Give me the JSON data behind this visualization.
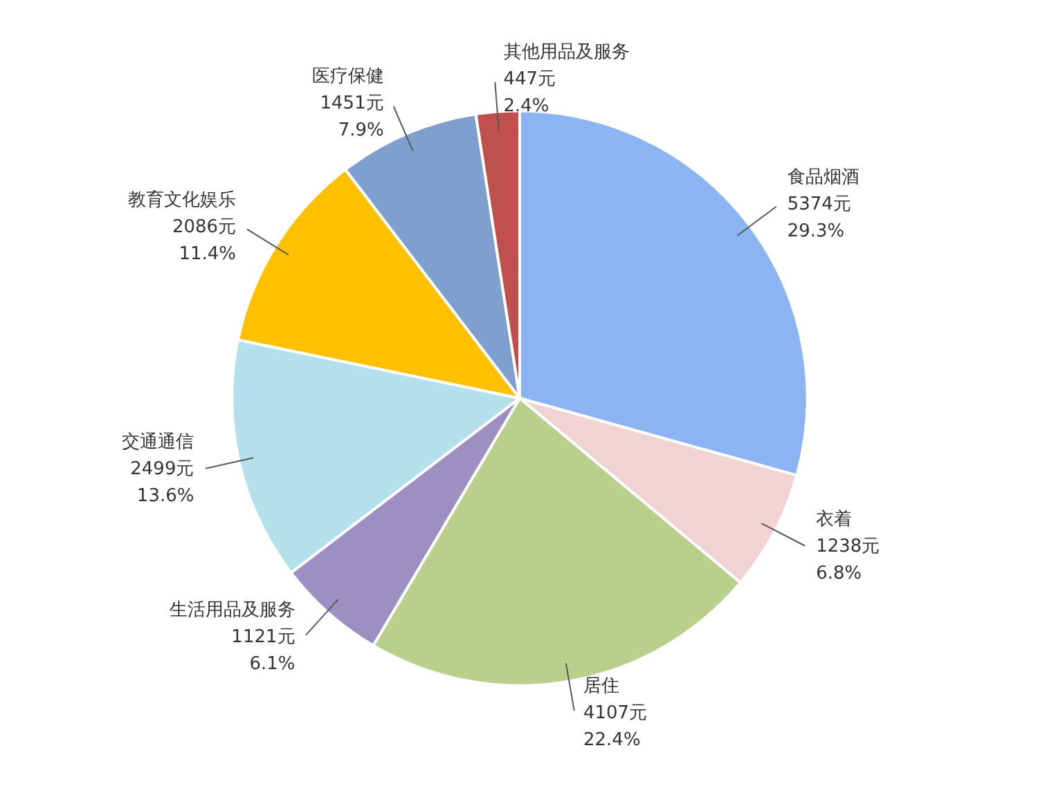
{
  "chart_data": {
    "type": "pie",
    "categories": [
      "食品烟酒",
      "衣着",
      "居住",
      "生活用品及服务",
      "交通通信",
      "教育文化娱乐",
      "医疗保健",
      "其他用品及服务"
    ],
    "values": [
      5374,
      1238,
      4107,
      1121,
      2499,
      2086,
      1451,
      447
    ],
    "value_labels": [
      "5374元\n29.3%",
      "1238元\n6.8%",
      "4107元\n22.4%",
      "1121元\n6.1%",
      "2499元\n13.6%",
      "2086元\n11.4%",
      "1451元\n7.9%",
      "447元\n2.4%"
    ],
    "colors": [
      "#8db4f2",
      "#f2d3d3",
      "#b8d08c",
      "#9d8fc2",
      "#b3e0ea",
      "#ffc000",
      "#7f9fcf",
      "#c0504d"
    ]
  }
}
